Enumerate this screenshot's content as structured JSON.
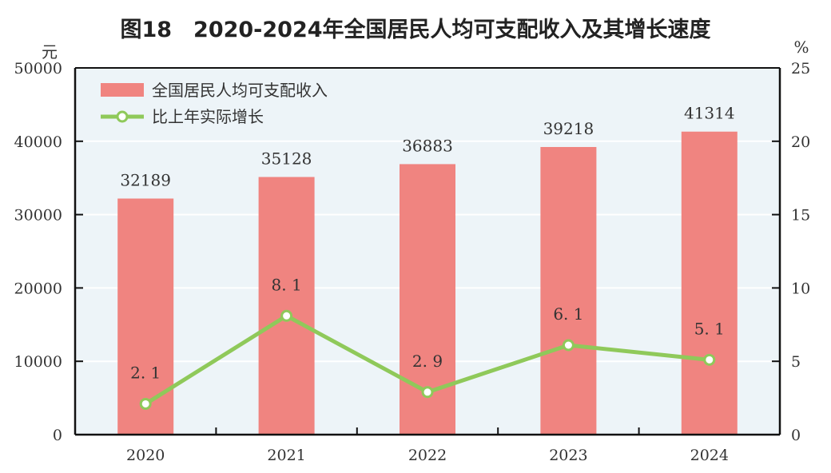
{
  "chart_data": {
    "type": "bar+line",
    "title": "图18　2020-2024年全国居民人均可支配收入及其增长速度",
    "categories": [
      "2020",
      "2021",
      "2022",
      "2023",
      "2024"
    ],
    "series": [
      {
        "name": "全国居民人均可支配收入",
        "type": "bar",
        "axis": "left",
        "values": [
          32189,
          35128,
          36883,
          39218,
          41314
        ],
        "labels": [
          "32189",
          "35128",
          "36883",
          "39218",
          "41314"
        ]
      },
      {
        "name": "比上年实际增长",
        "type": "line",
        "axis": "right",
        "values": [
          2.1,
          8.1,
          2.9,
          6.1,
          5.1
        ],
        "labels": [
          "2. 1",
          "8. 1",
          "2. 9",
          "6. 1",
          "5. 1"
        ]
      }
    ],
    "yleft": {
      "unit": "元",
      "range": [
        0,
        50000
      ],
      "ticks": [
        "0",
        "10000",
        "20000",
        "30000",
        "40000",
        "50000"
      ]
    },
    "yright": {
      "unit": "%",
      "range": [
        0,
        25
      ],
      "ticks": [
        "0",
        "5",
        "10",
        "15",
        "20",
        "25"
      ]
    },
    "grid": true,
    "legend": "top-left",
    "colors": {
      "bar": "#f08480",
      "line": "#8fc95a",
      "plot_bg": "#edf4f8"
    }
  }
}
